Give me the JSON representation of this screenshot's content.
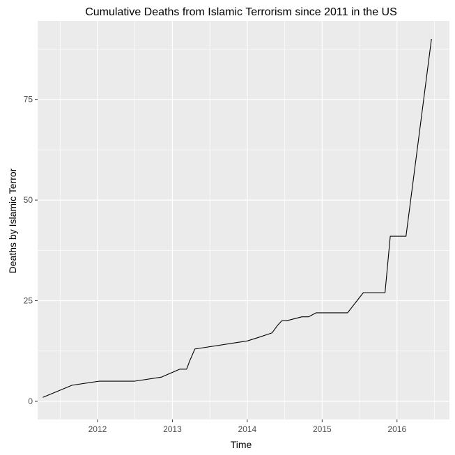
{
  "chart_data": {
    "type": "line",
    "title": "Cumulative Deaths from Islamic Terrorism since 2011 in the US",
    "xlabel": "Time",
    "ylabel": "Deaths by Islamic Terror",
    "xlim": [
      2011.2,
      2016.7
    ],
    "ylim": [
      -4.5,
      94.5
    ],
    "x_ticks": [
      2012,
      2013,
      2014,
      2015,
      2016
    ],
    "x_tick_labels": [
      "2012",
      "2013",
      "2014",
      "2015",
      "2016"
    ],
    "y_ticks": [
      0,
      25,
      50,
      75
    ],
    "y_tick_labels": [
      "0",
      "25",
      "50",
      "75"
    ],
    "grid": true,
    "legend": "none",
    "colors": {
      "panel": "#ebebeb",
      "grid": "#ffffff",
      "line": "#000000",
      "tick_text": "#4d4d4d"
    },
    "series": [
      {
        "x": [
          2011.27,
          2011.66,
          2012.02,
          2012.49,
          2012.85,
          2013.1,
          2013.19,
          2013.23,
          2013.3,
          2014.0,
          2014.17,
          2014.33,
          2014.41,
          2014.46,
          2014.52,
          2014.73,
          2014.82,
          2014.92,
          2015.34,
          2015.55,
          2015.84,
          2015.91,
          2016.12,
          2016.28,
          2016.46
        ],
        "y": [
          1,
          4,
          5,
          5,
          6,
          8,
          8,
          10,
          13,
          15,
          16,
          17,
          19,
          20,
          20,
          21,
          21,
          22,
          22,
          27,
          27,
          41,
          41,
          64,
          90
        ]
      }
    ]
  }
}
